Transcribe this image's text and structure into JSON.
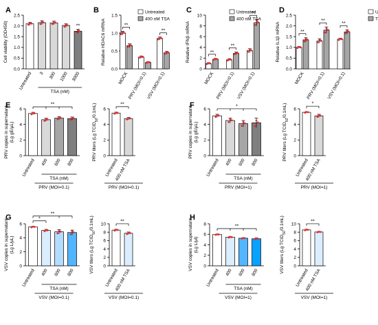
{
  "colors": {
    "white": "#ffffff",
    "light_gray": "#d9d9d9",
    "gray": "#a6a6a6",
    "dark_gray": "#7f7f7f",
    "light_blue": "#dbeeff",
    "sky_blue": "#b3dcff",
    "mid_blue": "#52b5ff",
    "deep_blue": "#0aa2ff",
    "dot": "#e03030",
    "axis": "#000000"
  },
  "chart_data": [
    {
      "panel": "A",
      "type": "bar",
      "ylabel": "Cell viability (OD450)",
      "ylim": [
        0,
        2.5
      ],
      "yticks": [
        0,
        0.5,
        1.0,
        1.5,
        2.0,
        2.5
      ],
      "categories": [
        "Untreated",
        "3",
        "300",
        "1000",
        "3000"
      ],
      "values": [
        2.1,
        2.15,
        2.14,
        2.02,
        1.75
      ],
      "errors": [
        0.07,
        0.09,
        0.08,
        0.08,
        0.09
      ],
      "fills": [
        "white",
        "light_gray",
        "light_gray",
        "light_gray",
        "dark_gray"
      ],
      "sig": [
        {
          "text": "**",
          "bar": 4
        }
      ],
      "group_label": "TSA (nM)",
      "group_span": [
        1,
        4
      ]
    },
    {
      "panel": "B",
      "type": "bar",
      "grouped": true,
      "ylabel": "Relative HDAC6 mRNA",
      "ylim": [
        0,
        1.5
      ],
      "yticks": [
        0,
        0.5,
        1.0,
        1.5
      ],
      "categories": [
        "MOCK",
        "PRV (MOI=0.1)",
        "VSV (MOI=0.1)"
      ],
      "series": [
        {
          "name": "Untreated",
          "values": [
            1.0,
            0.33,
            0.85
          ],
          "errors": [
            0.05,
            0.03,
            0.04
          ],
          "fill": "white"
        },
        {
          "name": "400 nM TSA",
          "values": [
            0.65,
            0.18,
            0.45
          ],
          "errors": [
            0.05,
            0.02,
            0.04
          ],
          "fill": "gray"
        }
      ],
      "legend": [
        "Untreated",
        "400 nM TSA"
      ],
      "sig_pairs": [
        {
          "group": 0,
          "text": "**"
        },
        {
          "group": 2,
          "text": "**"
        }
      ]
    },
    {
      "panel": "C",
      "type": "bar",
      "grouped": true,
      "ylabel": "Relative IFNβ mRNA",
      "ylim": [
        0,
        10
      ],
      "yticks": [
        0,
        2,
        4,
        6,
        8,
        10
      ],
      "categories": [
        "MOCK",
        "PRV (MOI=0.1)",
        "VSV (MOI=0.1)"
      ],
      "series": [
        {
          "name": "Untreated",
          "values": [
            1.0,
            1.7,
            3.4
          ],
          "errors": [
            0.15,
            0.2,
            0.35
          ],
          "fill": "white"
        },
        {
          "name": "400 nM TSA",
          "values": [
            1.8,
            2.9,
            8.6
          ],
          "errors": [
            0.15,
            0.25,
            0.6
          ],
          "fill": "gray"
        }
      ],
      "legend": [
        "Untreated",
        "400 nM TSA"
      ],
      "sig_pairs": [
        {
          "group": 0,
          "text": "**"
        },
        {
          "group": 1,
          "text": "**"
        },
        {
          "group": 2,
          "text": "**"
        }
      ]
    },
    {
      "panel": "D",
      "type": "bar",
      "grouped": true,
      "ylabel": "Relative IL1β mRNA",
      "ylim": [
        0,
        2.5
      ],
      "yticks": [
        0,
        0.5,
        1.0,
        1.5,
        2.0,
        2.5
      ],
      "categories": [
        "MOCK",
        "PRV (MOI=0.1)",
        "VSV (MOI=0.1)"
      ],
      "series": [
        {
          "name": "Untreated",
          "values": [
            1.0,
            1.3,
            1.38
          ],
          "errors": [
            0.04,
            0.1,
            0.05
          ],
          "fill": "white"
        },
        {
          "name": "TSA",
          "values": [
            1.35,
            1.8,
            1.72
          ],
          "errors": [
            0.1,
            0.15,
            0.1
          ],
          "fill": "gray"
        }
      ],
      "legend": [
        "Untreated",
        "TSA"
      ],
      "sig_pairs": [
        {
          "group": 0,
          "text": "**"
        },
        {
          "group": 1,
          "text": "**"
        },
        {
          "group": 2,
          "text": "**"
        }
      ]
    },
    {
      "panel": "E",
      "type": "bar",
      "ylabel": [
        "PRV copies in supernatant",
        "(Lg gE/μL)"
      ],
      "ylim": [
        0,
        6
      ],
      "yticks": [
        0,
        2,
        4,
        6
      ],
      "categories": [
        "Untreated",
        "400",
        "600",
        "800"
      ],
      "values": [
        5.4,
        4.6,
        4.8,
        4.75
      ],
      "errors": [
        0.15,
        0.2,
        0.2,
        0.2
      ],
      "fills": [
        "white",
        "light_gray",
        "gray",
        "dark_gray"
      ],
      "bracket": {
        "text": "**",
        "drops": [
          1,
          2,
          3
        ]
      },
      "group_label": "TSA (nM)",
      "group_span": [
        1,
        3
      ],
      "footer": "PRV (MOI=0.1)"
    },
    {
      "panel": "E2",
      "type": "bar",
      "ylabel": "PRV titers (Lg TCID50/0.1mL)",
      "ylim": [
        0,
        6
      ],
      "yticks": [
        0,
        2,
        4,
        6
      ],
      "categories": [
        "Untreated",
        "400 nM TSA"
      ],
      "values": [
        5.45,
        4.75
      ],
      "errors": [
        0.12,
        0.15
      ],
      "fills": [
        "white",
        "light_gray"
      ],
      "pair_sig": "**",
      "footer": "PRV (MOI=0.1)"
    },
    {
      "panel": "F",
      "type": "bar",
      "ylabel": [
        "PRV copies in supernatant",
        "(Lg gE/μL)"
      ],
      "ylim": [
        0,
        6
      ],
      "yticks": [
        0,
        2,
        4,
        6
      ],
      "categories": [
        "Untreated",
        "400",
        "600",
        "800"
      ],
      "values": [
        5.1,
        4.5,
        4.1,
        4.2
      ],
      "errors": [
        0.2,
        0.3,
        0.4,
        0.6
      ],
      "fills": [
        "white",
        "light_gray",
        "gray",
        "dark_gray"
      ],
      "bracket": {
        "text": "*",
        "drops": [
          1,
          2,
          3
        ]
      },
      "group_label": "TSA (nM)",
      "group_span": [
        1,
        3
      ],
      "footer": "PRV (MOI=1)"
    },
    {
      "panel": "F2",
      "type": "bar",
      "ylabel": "PRV titers (Lg TCID50/0.1mL)",
      "ylim": [
        0,
        6
      ],
      "yticks": [
        0,
        2,
        4,
        6
      ],
      "categories": [
        "Untreated",
        "400 nM TSA"
      ],
      "values": [
        5.55,
        5.1
      ],
      "errors": [
        0.08,
        0.2
      ],
      "fills": [
        "white",
        "light_gray"
      ],
      "pair_sig": "*",
      "footer": "PRV (MOI=1)"
    },
    {
      "panel": "G",
      "type": "bar",
      "ylabel": [
        "VSV copies in supernatant",
        "(Lg L/μL)"
      ],
      "ylim": [
        0,
        6
      ],
      "yticks": [
        0,
        2,
        4,
        6
      ],
      "categories": [
        "Untreated",
        "400",
        "600",
        "800"
      ],
      "values": [
        5.55,
        5.05,
        4.85,
        4.75
      ],
      "errors": [
        0.08,
        0.15,
        0.3,
        0.35
      ],
      "fills": [
        "white",
        "light_blue",
        "sky_blue",
        "mid_blue"
      ],
      "bracket": {
        "text": "**",
        "drops": [
          2,
          3
        ]
      },
      "bracket2": {
        "text": "*",
        "drops": [
          1
        ]
      },
      "group_label": "TSA (nM)",
      "group_span": [
        1,
        3
      ],
      "footer": "VSV (MOI=0.1)"
    },
    {
      "panel": "G2",
      "type": "bar",
      "ylabel": "VSV titers (Lg TCID50/0.1mL)",
      "ylim": [
        0,
        10
      ],
      "yticks": [
        0,
        2,
        4,
        6,
        8,
        10
      ],
      "categories": [
        "Untreated",
        "400 nM TSA"
      ],
      "values": [
        8.5,
        7.75
      ],
      "errors": [
        0.2,
        0.3
      ],
      "fills": [
        "white",
        "light_blue"
      ],
      "pair_sig": "**",
      "footer": "VSV (MOI=0.1)"
    },
    {
      "panel": "H",
      "type": "bar",
      "ylabel": [
        "VSV copies in supernatant",
        "(Lg L/μl)"
      ],
      "ylim": [
        0,
        8
      ],
      "yticks": [
        0,
        2,
        4,
        6,
        8
      ],
      "categories": [
        "Untreated",
        "400",
        "600",
        "800"
      ],
      "values": [
        5.95,
        5.45,
        5.25,
        5.15
      ],
      "errors": [
        0.08,
        0.12,
        0.1,
        0.15
      ],
      "fills": [
        "white",
        "light_blue",
        "mid_blue",
        "deep_blue"
      ],
      "bracket": {
        "text": "**",
        "drops": [
          1,
          2,
          3
        ]
      },
      "group_label": "TSA (nM)",
      "group_span": [
        1,
        3
      ],
      "footer": "VSV (MOI=1)"
    },
    {
      "panel": "H2",
      "type": "bar",
      "ylabel": "VSV titers (Lg TCID50/0.1mL)",
      "ylim": [
        0,
        10
      ],
      "yticks": [
        0,
        2,
        4,
        6,
        8,
        10
      ],
      "categories": [
        "Untreated",
        "400 nM TSA"
      ],
      "values": [
        8.55,
        8.05
      ],
      "errors": [
        0.15,
        0.12
      ],
      "fills": [
        "white",
        "light_blue"
      ],
      "pair_sig": "**",
      "footer": "VSV (MOI=1)"
    }
  ]
}
